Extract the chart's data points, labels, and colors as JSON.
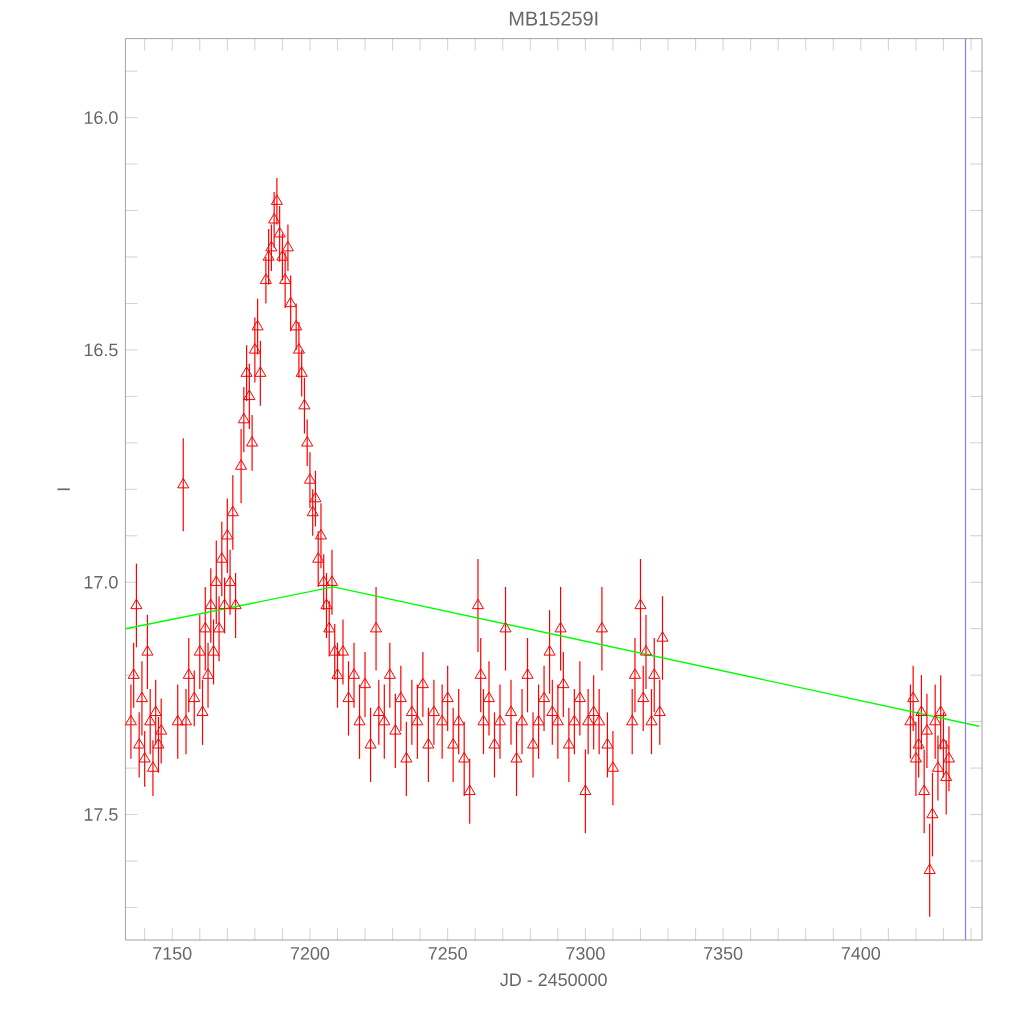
{
  "chart_data": {
    "type": "scatter",
    "title": "MB15259I",
    "xlabel": "JD - 2450000",
    "ylabel": "I",
    "xlim": [
      7133,
      7444
    ],
    "ylim": [
      17.77,
      15.83
    ],
    "xticks": [
      {
        "value": 7140,
        "label": null
      },
      7150,
      {
        "value": 7160,
        "label": null
      },
      {
        "value": 7170,
        "label": null
      },
      {
        "value": 7180,
        "label": null
      },
      {
        "value": 7190,
        "label": null
      },
      7200,
      {
        "value": 7210,
        "label": null
      },
      {
        "value": 7220,
        "label": null
      },
      {
        "value": 7230,
        "label": null
      },
      {
        "value": 7240,
        "label": null
      },
      7250,
      {
        "value": 7260,
        "label": null
      },
      {
        "value": 7270,
        "label": null
      },
      {
        "value": 7280,
        "label": null
      },
      {
        "value": 7290,
        "label": null
      },
      7300,
      {
        "value": 7310,
        "label": null
      },
      {
        "value": 7320,
        "label": null
      },
      {
        "value": 7330,
        "label": null
      },
      {
        "value": 7340,
        "label": null
      },
      7350,
      {
        "value": 7360,
        "label": null
      },
      {
        "value": 7370,
        "label": null
      },
      {
        "value": 7380,
        "label": null
      },
      {
        "value": 7390,
        "label": null
      },
      7400,
      {
        "value": 7410,
        "label": null
      },
      {
        "value": 7420,
        "label": null
      },
      {
        "value": 7430,
        "label": null
      },
      {
        "value": 7440,
        "label": null
      }
    ],
    "yticks": [
      {
        "value": 15.9,
        "label": null
      },
      {
        "value": 16.0,
        "label": "16.0"
      },
      {
        "value": 16.1,
        "label": null
      },
      {
        "value": 16.2,
        "label": null
      },
      {
        "value": 16.3,
        "label": null
      },
      {
        "value": 16.4,
        "label": null
      },
      16.5,
      {
        "value": 16.6,
        "label": null
      },
      {
        "value": 16.7,
        "label": null
      },
      {
        "value": 16.8,
        "label": null
      },
      {
        "value": 16.9,
        "label": null
      },
      {
        "value": 17.0,
        "label": "17.0"
      },
      {
        "value": 17.1,
        "label": null
      },
      {
        "value": 17.2,
        "label": null
      },
      {
        "value": 17.3,
        "label": null
      },
      {
        "value": 17.4,
        "label": null
      },
      17.5,
      {
        "value": 17.6,
        "label": null
      },
      {
        "value": 17.7,
        "label": null
      }
    ],
    "marker": "triangle",
    "ref_lines": [
      {
        "axis": "x",
        "value": 7438,
        "color": "#7f7fff"
      }
    ],
    "series": [
      {
        "color": "#ff0000",
        "x": [
          7135,
          7136,
          7137,
          7138,
          7139,
          7140,
          7141,
          7142,
          7143,
          7144,
          7145,
          7146,
          7152,
          7154,
          7155,
          7156,
          7158,
          7160,
          7161,
          7162,
          7163,
          7164,
          7165,
          7166,
          7167,
          7168,
          7169,
          7170,
          7171,
          7172,
          7173,
          7175,
          7176,
          7177,
          7178,
          7179,
          7180,
          7181,
          7182,
          7184,
          7185,
          7186,
          7187,
          7188,
          7189,
          7190,
          7191,
          7192,
          7193,
          7195,
          7196,
          7197,
          7198,
          7199,
          7200,
          7201,
          7202,
          7203,
          7204,
          7205,
          7206,
          7207,
          7208,
          7209,
          7210,
          7212,
          7214,
          7216,
          7218,
          7220,
          7222,
          7224,
          7225,
          7227,
          7229,
          7231,
          7233,
          7235,
          7237,
          7239,
          7241,
          7243,
          7245,
          7248,
          7250,
          7252,
          7254,
          7256,
          7258,
          7261,
          7262,
          7263,
          7265,
          7267,
          7269,
          7271,
          7273,
          7275,
          7277,
          7279,
          7281,
          7283,
          7285,
          7287,
          7288,
          7290,
          7291,
          7292,
          7294,
          7296,
          7298,
          7300,
          7301,
          7303,
          7305,
          7306,
          7308,
          7310,
          7317,
          7318,
          7320,
          7321,
          7322,
          7324,
          7325,
          7327,
          7328,
          7418,
          7419,
          7420,
          7421,
          7422,
          7423,
          7424,
          7425,
          7426,
          7427,
          7428,
          7429,
          7430,
          7431,
          7432
        ],
        "values": [
          17.3,
          17.2,
          17.05,
          17.35,
          17.25,
          17.38,
          17.15,
          17.3,
          17.4,
          17.28,
          17.35,
          17.32,
          17.3,
          16.79,
          17.3,
          17.2,
          17.25,
          17.15,
          17.28,
          17.1,
          17.2,
          17.05,
          17.15,
          17.0,
          17.1,
          16.95,
          17.05,
          16.9,
          17.0,
          16.85,
          17.05,
          16.75,
          16.65,
          16.55,
          16.6,
          16.7,
          16.5,
          16.45,
          16.55,
          16.35,
          16.3,
          16.28,
          16.22,
          16.18,
          16.25,
          16.3,
          16.35,
          16.28,
          16.4,
          16.45,
          16.5,
          16.55,
          16.62,
          16.7,
          16.78,
          16.85,
          16.82,
          16.95,
          16.9,
          17.0,
          17.05,
          17.1,
          17.0,
          17.15,
          17.2,
          17.15,
          17.25,
          17.2,
          17.3,
          17.22,
          17.35,
          17.1,
          17.28,
          17.3,
          17.2,
          17.32,
          17.25,
          17.38,
          17.28,
          17.3,
          17.22,
          17.35,
          17.28,
          17.3,
          17.25,
          17.35,
          17.3,
          17.38,
          17.45,
          17.05,
          17.2,
          17.3,
          17.25,
          17.35,
          17.3,
          17.1,
          17.28,
          17.38,
          17.3,
          17.2,
          17.35,
          17.3,
          17.25,
          17.15,
          17.28,
          17.3,
          17.1,
          17.22,
          17.35,
          17.3,
          17.25,
          17.45,
          17.3,
          17.28,
          17.3,
          17.1,
          17.35,
          17.4,
          17.3,
          17.2,
          17.05,
          17.25,
          17.15,
          17.3,
          17.2,
          17.28,
          17.12,
          17.3,
          17.25,
          17.38,
          17.35,
          17.28,
          17.45,
          17.32,
          17.62,
          17.5,
          17.3,
          17.4,
          17.28,
          17.35,
          17.42,
          17.38
        ],
        "errors": [
          0.08,
          0.07,
          0.09,
          0.07,
          0.08,
          0.06,
          0.08,
          0.07,
          0.06,
          0.07,
          0.06,
          0.07,
          0.08,
          0.1,
          0.07,
          0.08,
          0.06,
          0.08,
          0.07,
          0.09,
          0.07,
          0.08,
          0.07,
          0.09,
          0.07,
          0.08,
          0.06,
          0.08,
          0.07,
          0.08,
          0.07,
          0.08,
          0.07,
          0.06,
          0.07,
          0.06,
          0.07,
          0.06,
          0.07,
          0.05,
          0.06,
          0.05,
          0.06,
          0.05,
          0.06,
          0.05,
          0.06,
          0.05,
          0.06,
          0.05,
          0.06,
          0.05,
          0.06,
          0.05,
          0.06,
          0.05,
          0.06,
          0.06,
          0.07,
          0.06,
          0.07,
          0.06,
          0.07,
          0.06,
          0.07,
          0.07,
          0.08,
          0.07,
          0.08,
          0.07,
          0.08,
          0.09,
          0.07,
          0.08,
          0.07,
          0.08,
          0.07,
          0.08,
          0.07,
          0.08,
          0.07,
          0.08,
          0.07,
          0.08,
          0.07,
          0.08,
          0.07,
          0.08,
          0.07,
          0.1,
          0.08,
          0.07,
          0.08,
          0.07,
          0.08,
          0.09,
          0.07,
          0.08,
          0.07,
          0.08,
          0.07,
          0.08,
          0.07,
          0.09,
          0.07,
          0.08,
          0.09,
          0.07,
          0.08,
          0.07,
          0.08,
          0.09,
          0.07,
          0.08,
          0.07,
          0.09,
          0.07,
          0.08,
          0.07,
          0.08,
          0.1,
          0.07,
          0.08,
          0.07,
          0.08,
          0.07,
          0.09,
          0.08,
          0.07,
          0.08,
          0.07,
          0.08,
          0.09,
          0.08,
          0.1,
          0.09,
          0.08,
          0.07,
          0.08,
          0.07,
          0.08,
          0.07
        ]
      },
      {
        "type": "line",
        "color": "#00ff00",
        "line_style": "solid",
        "marker": "none",
        "x": [
          7133,
          7208.5,
          7443
        ],
        "values": [
          17.1,
          17.01,
          17.31
        ]
      }
    ]
  }
}
